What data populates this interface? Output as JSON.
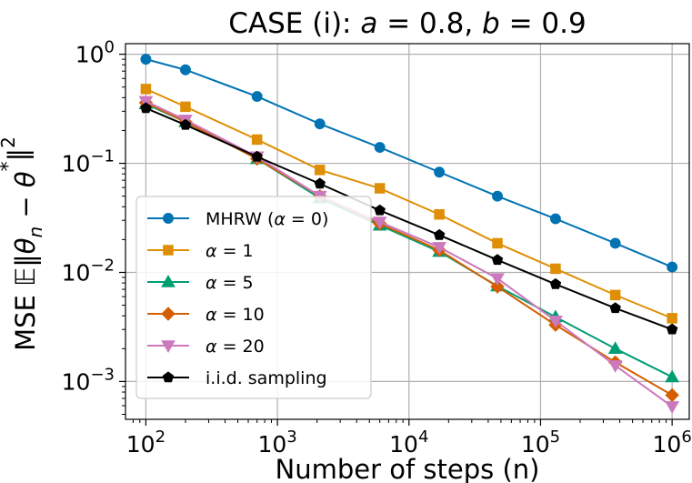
{
  "chart_data": {
    "type": "line",
    "title": "CASE (i): a = 0.8, b = 0.9",
    "xlabel": "Number of steps (n)",
    "ylabel": "MSE 𝔼‖θn − θ*‖²",
    "xscale": "log",
    "yscale": "log",
    "xlim": [
      70,
      1350000
    ],
    "ylim": [
      0.00045,
      1.25
    ],
    "x_ticks": [
      {
        "value": 100,
        "base": "10",
        "exp": "2"
      },
      {
        "value": 1000,
        "base": "10",
        "exp": "3"
      },
      {
        "value": 10000,
        "base": "10",
        "exp": "4"
      },
      {
        "value": 100000,
        "base": "10",
        "exp": "5"
      },
      {
        "value": 1000000,
        "base": "10",
        "exp": "6"
      }
    ],
    "y_ticks": [
      {
        "value": 1,
        "base": "10",
        "exp": "0"
      },
      {
        "value": 0.1,
        "base": "10",
        "exp": "−1"
      },
      {
        "value": 0.01,
        "base": "10",
        "exp": "−2"
      },
      {
        "value": 0.001,
        "base": "10",
        "exp": "−3"
      }
    ],
    "grid": true,
    "legend_position": "lower-left",
    "x": [
      100,
      200,
      700,
      2100,
      6000,
      17000,
      47000,
      130000,
      370000,
      1000000
    ],
    "series": [
      {
        "name": "MHRW (α = 0)",
        "color": "#0173b2",
        "marker": "circle",
        "values": [
          0.9,
          0.72,
          0.41,
          0.23,
          0.14,
          0.083,
          0.05,
          0.031,
          0.0185,
          0.0112
        ]
      },
      {
        "name": "α = 1",
        "color": "#de8f05",
        "marker": "square",
        "values": [
          0.48,
          0.33,
          0.165,
          0.087,
          0.059,
          0.034,
          0.0185,
          0.0108,
          0.0062,
          0.0038
        ]
      },
      {
        "name": "α = 5",
        "color": "#029e73",
        "marker": "triangle-up",
        "values": [
          0.35,
          0.24,
          0.11,
          0.048,
          0.027,
          0.0155,
          0.0075,
          0.0039,
          0.002,
          0.0011
        ]
      },
      {
        "name": "α = 10",
        "color": "#d55e00",
        "marker": "diamond",
        "values": [
          0.36,
          0.24,
          0.11,
          0.05,
          0.028,
          0.016,
          0.0074,
          0.0033,
          0.0015,
          0.00075
        ]
      },
      {
        "name": "α = 20",
        "color": "#cc78bc",
        "marker": "triangle-down",
        "values": [
          0.37,
          0.25,
          0.115,
          0.05,
          0.029,
          0.017,
          0.0088,
          0.0036,
          0.0014,
          0.00059
        ]
      },
      {
        "name": "i.i.d. sampling",
        "color": "#000000",
        "marker": "pentagon",
        "values": [
          0.32,
          0.225,
          0.115,
          0.065,
          0.037,
          0.022,
          0.013,
          0.0078,
          0.0047,
          0.003
        ]
      }
    ]
  }
}
